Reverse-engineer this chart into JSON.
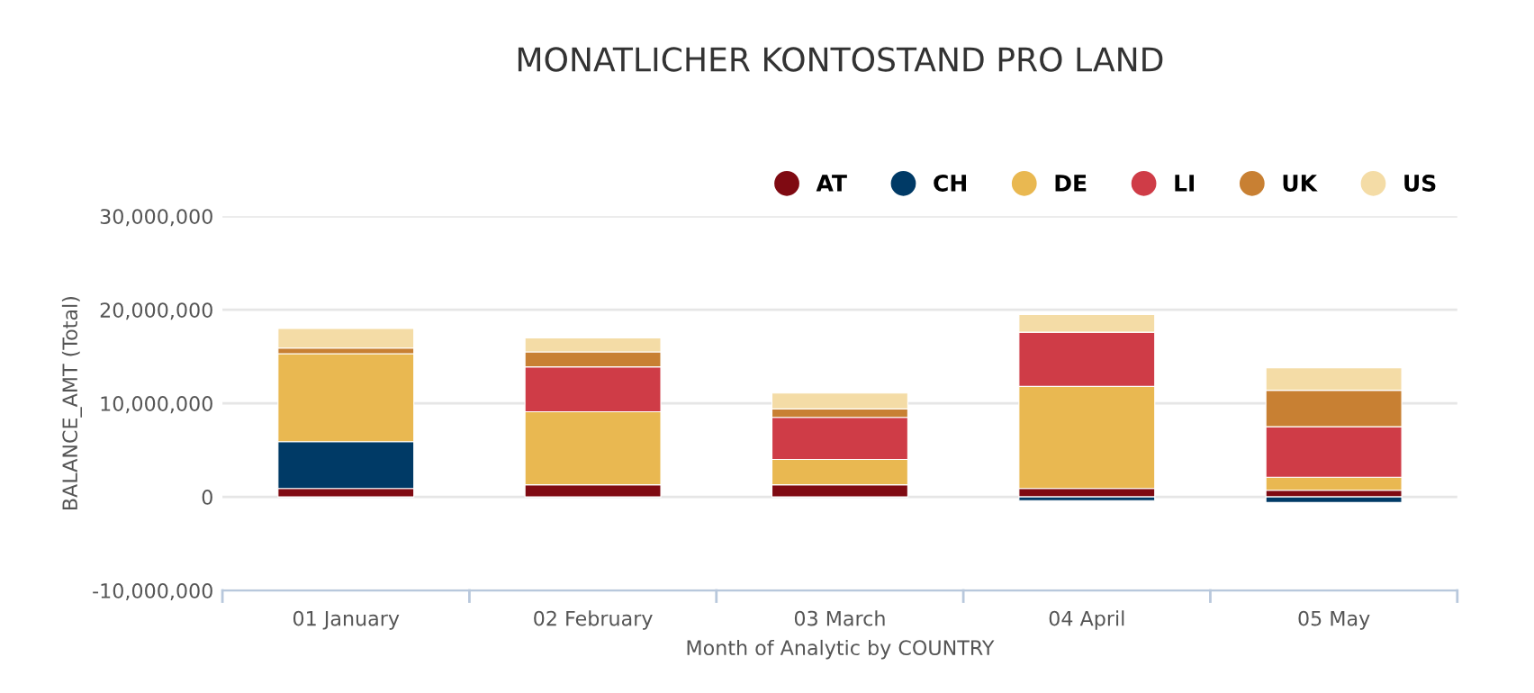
{
  "chart_data": {
    "type": "bar",
    "title": "MONATLICHER KONTOSTAND PRO LAND",
    "xlabel": "Month of Analytic by COUNTRY",
    "ylabel": "BALANCE_AMT (Total)",
    "categories": [
      "01 January",
      "02 February",
      "03 March",
      "04 April",
      "05 May"
    ],
    "stacked": true,
    "legend": "top right",
    "marker": "circle",
    "grid": "y",
    "ylim": [
      -10000000,
      30000000
    ],
    "yticks": [
      {
        "value": -10000000,
        "label": "-10,000,000"
      },
      {
        "value": 0,
        "label": "0"
      },
      {
        "value": 10000000,
        "label": "10,000,000"
      },
      {
        "value": 20000000,
        "label": "20,000,000"
      },
      {
        "value": 30000000,
        "label": "30,000,000"
      }
    ],
    "series": [
      {
        "name": "AT",
        "color": "#7f0a12",
        "values": [
          900000,
          1300000,
          1300000,
          900000,
          700000
        ]
      },
      {
        "name": "CH",
        "color": "#003a66",
        "values": [
          5000000,
          null,
          null,
          -400000,
          -600000
        ]
      },
      {
        "name": "DE",
        "color": "#e9b851",
        "values": [
          9400000,
          7800000,
          2700000,
          10900000,
          1400000
        ]
      },
      {
        "name": "LI",
        "color": "#cf3c47",
        "values": [
          null,
          4800000,
          4500000,
          5800000,
          5400000
        ]
      },
      {
        "name": "UK",
        "color": "#c88033",
        "values": [
          600000,
          1600000,
          900000,
          null,
          3900000
        ]
      },
      {
        "name": "US",
        "color": "#f4dca6",
        "values": [
          2100000,
          1500000,
          1700000,
          1900000,
          2400000
        ]
      }
    ]
  }
}
